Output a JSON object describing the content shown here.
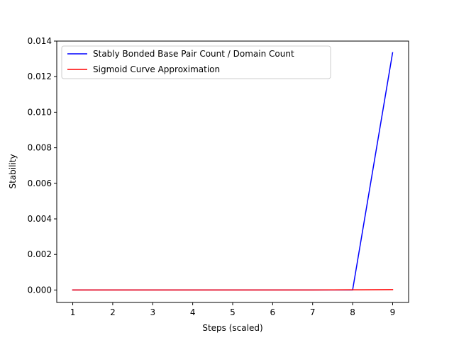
{
  "chart_data": {
    "type": "line",
    "xlabel": "Steps (scaled)",
    "ylabel": "Stability",
    "xlim": [
      0.6,
      9.4
    ],
    "ylim": [
      -0.0007,
      0.014
    ],
    "xticks": [
      1,
      2,
      3,
      4,
      5,
      6,
      7,
      8,
      9
    ],
    "xtick_labels": [
      "1",
      "2",
      "3",
      "4",
      "5",
      "6",
      "7",
      "8",
      "9"
    ],
    "yticks": [
      0.0,
      0.002,
      0.004,
      0.006,
      0.008,
      0.01,
      0.012,
      0.014
    ],
    "ytick_labels": [
      "0.000",
      "0.002",
      "0.004",
      "0.006",
      "0.008",
      "0.010",
      "0.012",
      "0.014"
    ],
    "grid": false,
    "legend_position": "top-left",
    "series": [
      {
        "name": "Stably Bonded Base Pair Count / Domain Count",
        "color": "#0000ff",
        "x": [
          1,
          2,
          3,
          4,
          5,
          6,
          7,
          8,
          9
        ],
        "y": [
          0.0,
          0.0,
          0.0,
          0.0,
          0.0,
          0.0,
          0.0,
          0.0,
          0.01335
        ]
      },
      {
        "name": "Sigmoid Curve Approximation",
        "color": "#ff0000",
        "x": [
          1,
          2,
          3,
          4,
          5,
          6,
          7,
          8,
          9
        ],
        "y": [
          0.0,
          0.0,
          0.0,
          0.0,
          0.0,
          0.0,
          0.0,
          1e-05,
          2e-05
        ]
      }
    ]
  }
}
